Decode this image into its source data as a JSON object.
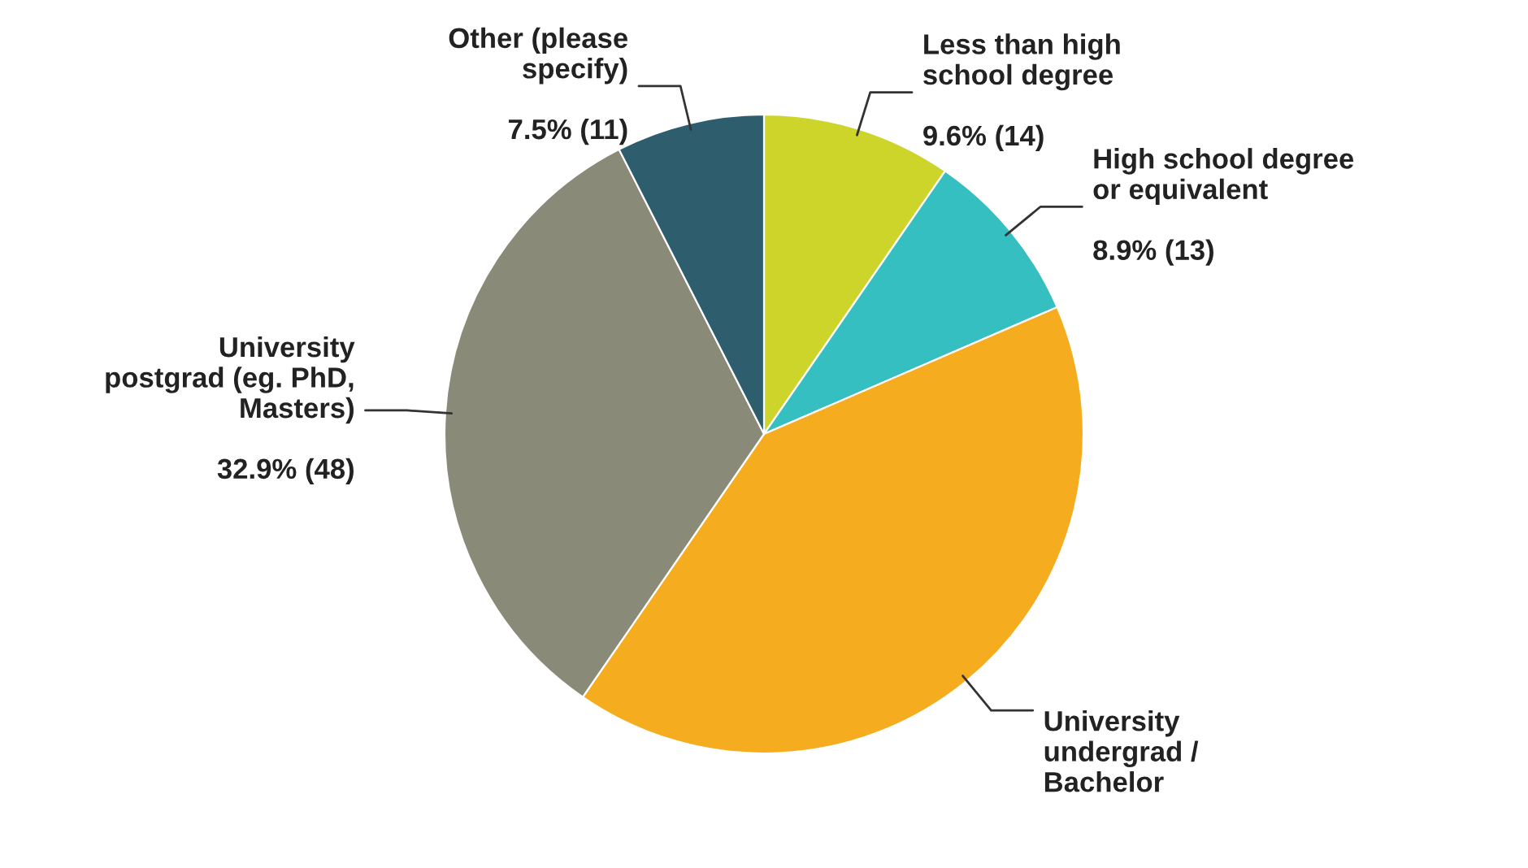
{
  "chart_data": {
    "type": "pie",
    "categories": [
      "Less than high\nschool degree",
      "High school degree\nor equivalent",
      "University\nundergrad /\nBachelor",
      "University\npostgrad (eg. PhD,\nMasters)",
      "Other (please\nspecify)"
    ],
    "values": [
      9.6,
      8.9,
      41.1,
      32.9,
      7.5
    ],
    "value_labels": [
      "9.6% (14)",
      "8.9% (13)",
      null,
      "32.9% (48)",
      "7.5% (11)"
    ],
    "colors": [
      "#cdd52a",
      "#36bfc1",
      "#f5ad1f",
      "#8a8a78",
      "#2e5e6e"
    ],
    "legend": false
  }
}
